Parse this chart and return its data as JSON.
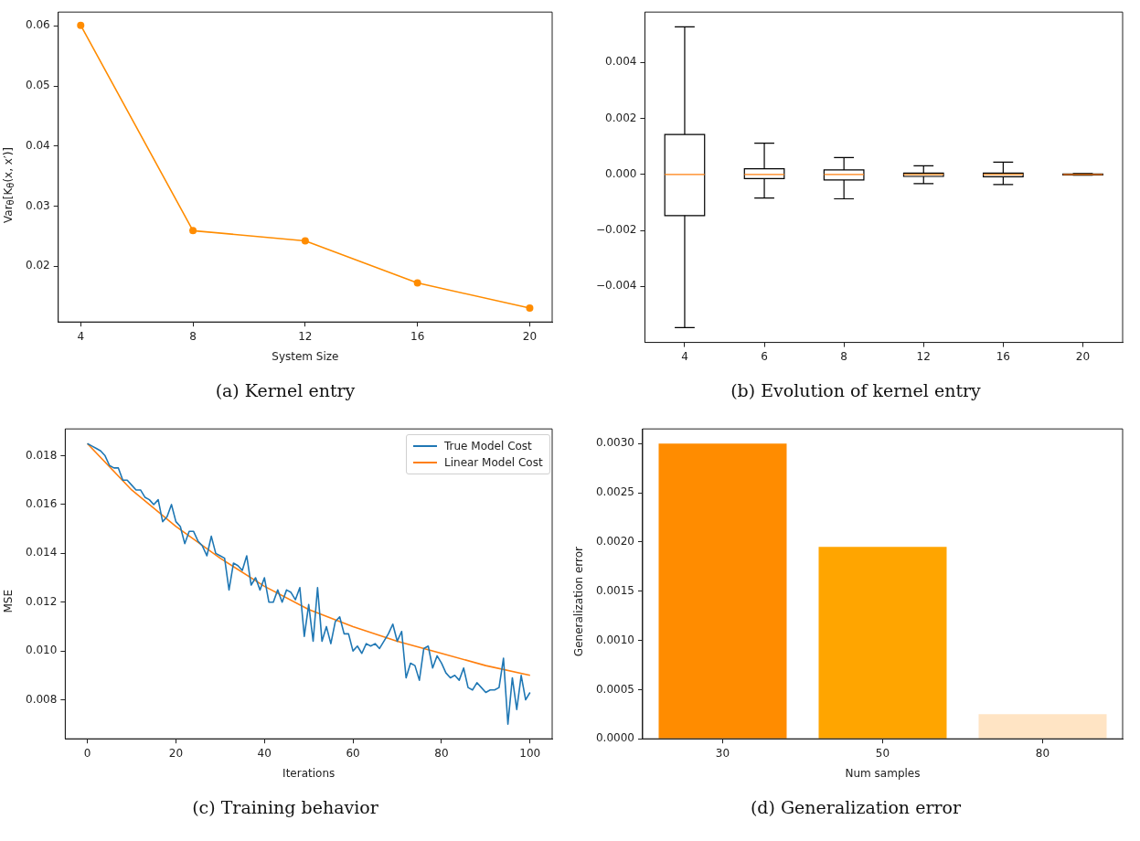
{
  "chart_data": [
    {
      "type": "line",
      "title": "(a) Kernel entry",
      "xlabel": "System Size",
      "ylabel": "Var$_{θ}$[K$_{θ}$(x, x′)]",
      "x": [
        4,
        8,
        12,
        16,
        20
      ],
      "values": [
        0.0601,
        0.0259,
        0.0242,
        0.0172,
        0.013
      ],
      "color": "#ff8c00",
      "xlim": [
        3.2,
        20.8
      ],
      "xticks": [
        4,
        8,
        12,
        16,
        20
      ],
      "ylim": [
        0.0107,
        0.0623
      ],
      "yticks": [
        0.02,
        0.03,
        0.04,
        0.05,
        0.06
      ],
      "marker": "circle",
      "grid": false,
      "legend": false
    },
    {
      "type": "box",
      "title": "(b) Evolution of kernel entry",
      "categories": [
        "4",
        "6",
        "8",
        "12",
        "16",
        "20"
      ],
      "color": "#000000",
      "boxes": [
        {
          "low": -0.00547,
          "q1": -0.00147,
          "median": 0,
          "q3": 0.00143,
          "high": 0.00527
        },
        {
          "low": -0.00084,
          "q1": -0.00015,
          "median": 0,
          "q3": 0.0002,
          "high": 0.00112
        },
        {
          "low": -0.00087,
          "q1": -0.0002,
          "median": 0,
          "q3": 0.00016,
          "high": 0.0006
        },
        {
          "low": -0.00033,
          "q1": -7e-05,
          "median": 0,
          "q3": 5e-05,
          "high": 0.00031
        },
        {
          "low": -0.00036,
          "q1": -8e-05,
          "median": 0,
          "q3": 5e-05,
          "high": 0.00044
        },
        {
          "low": -3e-05,
          "q1": -2e-05,
          "median": 0,
          "q3": 2e-05,
          "high": 3e-05
        }
      ],
      "ylim": [
        -0.006,
        0.0058
      ],
      "yticks": [
        {
          "value": -0.004,
          "label": "−0.004"
        },
        {
          "value": -0.002,
          "label": "−0.002"
        },
        {
          "value": 0,
          "label": "0.000"
        },
        {
          "value": 0.002,
          "label": "0.002"
        },
        {
          "value": 0.004,
          "label": "0.004"
        }
      ],
      "grid": false,
      "legend": false
    },
    {
      "type": "line",
      "title": "(c) Training behavior",
      "xlabel": "Iterations",
      "ylabel": "MSE",
      "series": [
        {
          "name": "True Model Cost",
          "color": "#1f77b4",
          "x": [
            0,
            1,
            2,
            3,
            4,
            5,
            6,
            7,
            8,
            9,
            10,
            11,
            12,
            13,
            14,
            15,
            16,
            17,
            18,
            19,
            20,
            21,
            22,
            23,
            24,
            25,
            26,
            27,
            28,
            29,
            30,
            31,
            32,
            33,
            34,
            35,
            36,
            37,
            38,
            39,
            40,
            41,
            42,
            43,
            44,
            45,
            46,
            47,
            48,
            49,
            50,
            51,
            52,
            53,
            54,
            55,
            56,
            57,
            58,
            59,
            60,
            61,
            62,
            63,
            64,
            65,
            66,
            67,
            68,
            69,
            70,
            71,
            72,
            73,
            74,
            75,
            76,
            77,
            78,
            79,
            80,
            81,
            82,
            83,
            84,
            85,
            86,
            87,
            88,
            89,
            90,
            91,
            92,
            93,
            94,
            95,
            96,
            97,
            98,
            99,
            100
          ],
          "values": [
            0.0185,
            0.0184,
            0.0183,
            0.0182,
            0.018,
            0.0176,
            0.0175,
            0.0175,
            0.017,
            0.017,
            0.0168,
            0.0166,
            0.0166,
            0.0163,
            0.0162,
            0.016,
            0.0162,
            0.0153,
            0.0155,
            0.016,
            0.0153,
            0.0151,
            0.0144,
            0.0149,
            0.0149,
            0.0145,
            0.0143,
            0.0139,
            0.0147,
            0.014,
            0.0139,
            0.0138,
            0.0125,
            0.0136,
            0.0135,
            0.0133,
            0.0139,
            0.0127,
            0.013,
            0.0125,
            0.013,
            0.012,
            0.012,
            0.0125,
            0.012,
            0.0125,
            0.0124,
            0.0121,
            0.0126,
            0.0106,
            0.0119,
            0.0104,
            0.0126,
            0.0104,
            0.011,
            0.0103,
            0.0112,
            0.0114,
            0.0107,
            0.0107,
            0.01,
            0.0102,
            0.0099,
            0.0103,
            0.0102,
            0.0103,
            0.0101,
            0.0104,
            0.0107,
            0.0111,
            0.0104,
            0.0108,
            0.0089,
            0.0095,
            0.0094,
            0.0088,
            0.0101,
            0.0102,
            0.0093,
            0.0098,
            0.0095,
            0.0091,
            0.0089,
            0.009,
            0.0088,
            0.0093,
            0.0085,
            0.0084,
            0.0087,
            0.0085,
            0.0083,
            0.0084,
            0.0084,
            0.0085,
            0.0097,
            0.007,
            0.0089,
            0.0076,
            0.009,
            0.008,
            0.0083
          ]
        },
        {
          "name": "Linear Model Cost",
          "color": "#ff7f0e",
          "x": [
            0,
            10,
            20,
            30,
            40,
            50,
            60,
            70,
            80,
            90,
            100
          ],
          "values": [
            0.0185,
            0.0166,
            0.0151,
            0.0138,
            0.01265,
            0.0117,
            0.011,
            0.0104,
            0.0099,
            0.0094,
            0.009
          ]
        }
      ],
      "xlim": [
        -5,
        105
      ],
      "xticks": [
        0,
        20,
        40,
        60,
        80,
        100
      ],
      "ylim": [
        0.0064,
        0.0191
      ],
      "yticks": [
        {
          "value": 0.008,
          "label": "0.008"
        },
        {
          "value": 0.01,
          "label": "0.010"
        },
        {
          "value": 0.012,
          "label": "0.012"
        },
        {
          "value": 0.014,
          "label": "0.014"
        },
        {
          "value": 0.016,
          "label": "0.016"
        },
        {
          "value": 0.018,
          "label": "0.018"
        }
      ],
      "marker": "none",
      "grid": false,
      "legend": "top right"
    },
    {
      "type": "bar",
      "title": "(d) Generalization error",
      "xlabel": "Num samples",
      "ylabel": "Generalization error",
      "categories": [
        "30",
        "50",
        "80"
      ],
      "values": [
        0.003,
        0.00195,
        0.00025
      ],
      "colors": [
        "#ff8c00",
        "#ffa500",
        "#ffe4c4"
      ],
      "ylim": [
        0,
        0.00315
      ],
      "yticks": [
        {
          "value": 0,
          "label": "0.0000"
        },
        {
          "value": 0.0005,
          "label": "0.0005"
        },
        {
          "value": 0.001,
          "label": "0.0010"
        },
        {
          "value": 0.0015,
          "label": "0.0015"
        },
        {
          "value": 0.002,
          "label": "0.0020"
        },
        {
          "value": 0.0025,
          "label": "0.0025"
        },
        {
          "value": 0.003,
          "label": "0.0030"
        }
      ],
      "grid": false,
      "legend": false
    }
  ]
}
